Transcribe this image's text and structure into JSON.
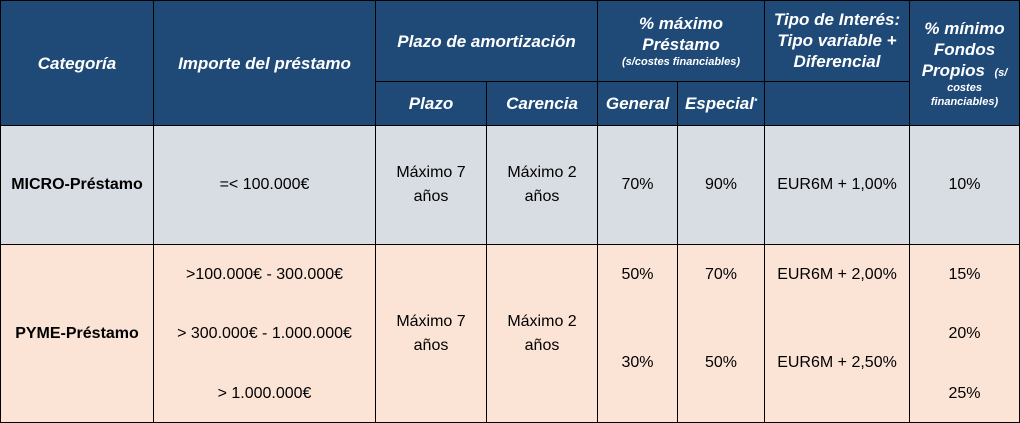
{
  "header": {
    "categoria": "Categoría",
    "importe": "Importe del préstamo",
    "plazo_amortizacion": "Plazo de amortización",
    "max_prestamo_line1": "% máximo",
    "max_prestamo_line2": "Préstamo",
    "max_prestamo_note": "(s/costes financiables)",
    "tipo_line1": "Tipo de Interés:",
    "tipo_line2": "Tipo variable +",
    "tipo_line3": "Diferencial",
    "min_fondos_line1": "% mínimo",
    "min_fondos_line2": "Fondos",
    "min_fondos_line3": "Propios",
    "min_fondos_note1": "(s/",
    "min_fondos_note2": "costes",
    "min_fondos_note3": "financiables)",
    "plazo": "Plazo",
    "carencia": "Carencia",
    "general": "General",
    "especial": "Especial",
    "especial_mark": "*"
  },
  "rows": {
    "micro": {
      "categoria": "MICRO-Préstamo",
      "importe": "=< 100.000€",
      "plazo_line1": "Máximo 7",
      "plazo_line2": "años",
      "carencia_line1": "Máximo 2",
      "carencia_line2": "años",
      "general": "70%",
      "especial": "90%",
      "tipo": "EUR6M + 1,00%",
      "min_fondos": "10%"
    },
    "pyme": {
      "categoria": "PYME-Préstamo",
      "importe": [
        ">100.000€ - 300.000€",
        "> 300.000€ - 1.000.000€",
        "> 1.000.000€"
      ],
      "plazo_line1": "Máximo 7",
      "plazo_line2": "años",
      "carencia_line1": "Máximo 2",
      "carencia_line2": "años",
      "general": [
        "50%",
        "30%"
      ],
      "especial": [
        "70%",
        "50%"
      ],
      "tipo": [
        "EUR6M + 2,00%",
        "EUR6M + 2,50%"
      ],
      "min_fondos": [
        "15%",
        "20%",
        "25%"
      ]
    }
  }
}
